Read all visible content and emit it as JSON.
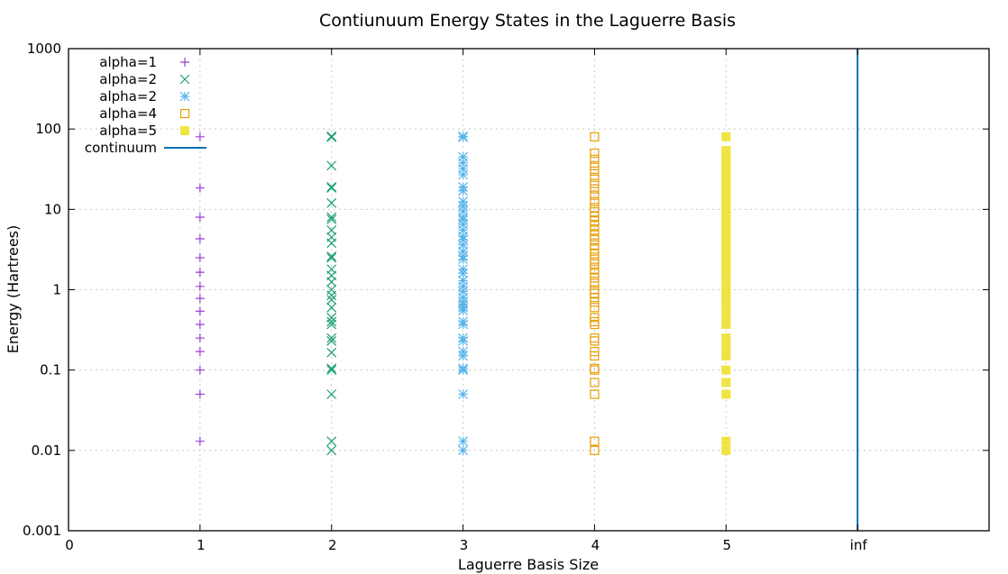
{
  "chart_data": {
    "type": "scatter",
    "title": "Contiunuum Energy States in the Laguerre Basis",
    "xlabel": "Laguerre Basis Size",
    "ylabel": "Energy (Hartrees)",
    "xlim": [
      0,
      7
    ],
    "ylim": [
      0.001,
      1000
    ],
    "yscale": "log",
    "grid": true,
    "legend_position": "top-left",
    "x_ticks": [
      {
        "value": 0,
        "label": "0"
      },
      {
        "value": 1,
        "label": "1"
      },
      {
        "value": 2,
        "label": "2"
      },
      {
        "value": 3,
        "label": "3"
      },
      {
        "value": 4,
        "label": "4"
      },
      {
        "value": 5,
        "label": "5"
      },
      {
        "value": 6,
        "label": "inf"
      }
    ],
    "y_ticks": [
      {
        "value": 0.001,
        "label": "0.001"
      },
      {
        "value": 0.01,
        "label": "0.01"
      },
      {
        "value": 0.1,
        "label": "0.1"
      },
      {
        "value": 1,
        "label": "1"
      },
      {
        "value": 10,
        "label": "10"
      },
      {
        "value": 100,
        "label": "100"
      },
      {
        "value": 1000,
        "label": "1000"
      }
    ],
    "series": [
      {
        "name": "alpha=1",
        "marker": "plus",
        "color": "#9b3fd4",
        "x": 1,
        "y": [
          0.013,
          0.05,
          0.1,
          0.17,
          0.25,
          0.37,
          0.54,
          0.78,
          1.1,
          1.65,
          2.5,
          4.3,
          8,
          18.5,
          80
        ]
      },
      {
        "name": "alpha=2",
        "marker": "x",
        "color": "#1a9e73",
        "x": 2,
        "y": [
          0.01,
          0.013,
          0.05,
          0.1,
          0.105,
          0.165,
          0.23,
          0.25,
          0.37,
          0.4,
          0.45,
          0.6,
          0.75,
          0.85,
          1.0,
          1.25,
          1.5,
          1.8,
          2.5,
          2.6,
          3.8,
          4.5,
          5.5,
          7.5,
          8,
          12,
          18.5,
          19,
          35,
          79,
          81
        ]
      },
      {
        "name": "alpha=2",
        "marker": "asterisk",
        "color": "#56b4e9",
        "x": 3,
        "y": [
          0.01,
          0.013,
          0.05,
          0.1,
          0.105,
          0.15,
          0.17,
          0.23,
          0.25,
          0.37,
          0.4,
          0.55,
          0.6,
          0.65,
          0.7,
          0.8,
          0.95,
          1.1,
          1.3,
          1.6,
          1.8,
          2.4,
          2.6,
          3.0,
          3.6,
          4.2,
          4.6,
          5.5,
          6.5,
          7.5,
          8,
          9.5,
          11,
          12.5,
          17,
          19,
          27,
          32,
          38,
          45,
          79,
          81
        ]
      },
      {
        "name": "alpha=4",
        "marker": "open-square",
        "color": "#e69f00",
        "x": 4,
        "y": [
          0.01,
          0.013,
          0.05,
          0.07,
          0.1,
          0.105,
          0.15,
          0.17,
          0.23,
          0.25,
          0.37,
          0.4,
          0.45,
          0.6,
          0.7,
          0.8,
          0.9,
          1.0,
          1.2,
          1.4,
          1.6,
          1.8,
          2.1,
          2.4,
          2.8,
          3.2,
          3.6,
          4.2,
          4.8,
          5.5,
          6.3,
          7.2,
          8.2,
          9.3,
          10.5,
          12.5,
          15,
          18,
          21,
          25,
          30,
          35,
          42,
          50,
          80
        ]
      },
      {
        "name": "alpha=5",
        "marker": "filled-square",
        "color": "#f0e442",
        "x": 5,
        "y": [
          0.01,
          0.013,
          0.05,
          0.07,
          0.1,
          0.15,
          0.17,
          0.2,
          0.25,
          0.37,
          0.4,
          0.5,
          0.6,
          0.7,
          0.8,
          0.9,
          1.0,
          1.2,
          1.4,
          1.6,
          1.8,
          2.0,
          2.3,
          2.6,
          3.0,
          3.4,
          3.8,
          4.3,
          4.8,
          5.4,
          6.0,
          6.8,
          7.6,
          8.5,
          9.5,
          10.5,
          12,
          13.5,
          15,
          17,
          19,
          21,
          24,
          27,
          30,
          34,
          38,
          43,
          48,
          54,
          80
        ]
      },
      {
        "name": "continuum",
        "marker": "line",
        "color": "#0072b2",
        "x": 6,
        "y": [
          0.001,
          1000
        ]
      }
    ]
  }
}
